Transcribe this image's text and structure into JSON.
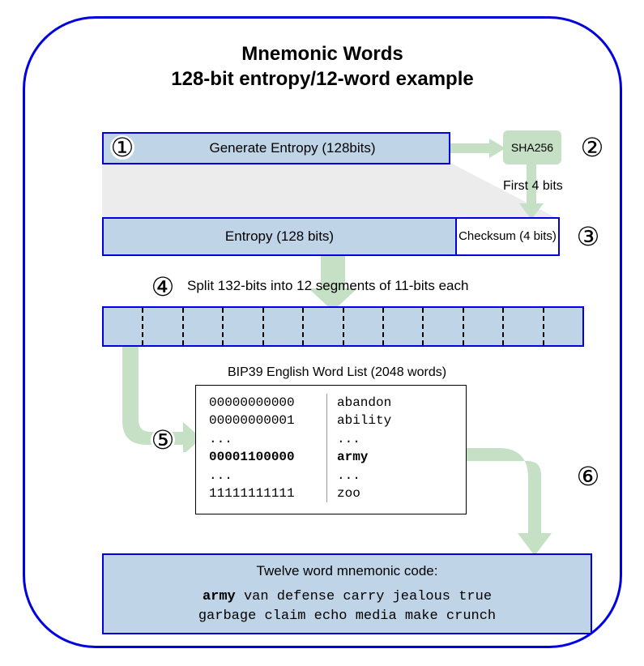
{
  "title_line1": "Mnemonic Words",
  "title_line2": "128-bit entropy/12-word example",
  "colors": {
    "frame_border": "#0000e0",
    "box_fill": "#c0d4e8",
    "sha_fill": "#c5e0c5",
    "arrow_fill": "#c5e0c5",
    "text": "#000000"
  },
  "steps": {
    "s1": "①",
    "s2": "②",
    "s3": "③",
    "s4": "④",
    "s5": "⑤",
    "s6": "⑥"
  },
  "box1_label": "Generate Entropy (128bits)",
  "sha_label": "SHA256",
  "first_bits_label": "First 4 bits",
  "entropy_label": "Entropy (128 bits)",
  "checksum_label": "Checksum (4 bits)",
  "split_label": "Split 132-bits into 12 segments of 11-bits each",
  "segments_count": 12,
  "wordlist_caption": "BIP39 English Word List (2048 words)",
  "wordlist": [
    {
      "idx": "00000000000",
      "word": "abandon",
      "bold": false
    },
    {
      "idx": "00000000001",
      "word": "ability",
      "bold": false
    },
    {
      "idx": "        ...",
      "word": "...",
      "bold": false
    },
    {
      "idx": "00001100000",
      "word": "army",
      "bold": true
    },
    {
      "idx": "        ...",
      "word": "...",
      "bold": false
    },
    {
      "idx": "11111111111",
      "word": "zoo",
      "bold": false
    }
  ],
  "result_header": "Twelve word mnemonic code:",
  "result_words_first": "army",
  "result_words_rest1": " van defense carry jealous true",
  "result_words_line2": "garbage claim echo media make crunch",
  "diagram_type": "flowchart",
  "fonts": {
    "title_size_pt": 18,
    "body_size_pt": 13,
    "mono_family": "Courier New"
  }
}
